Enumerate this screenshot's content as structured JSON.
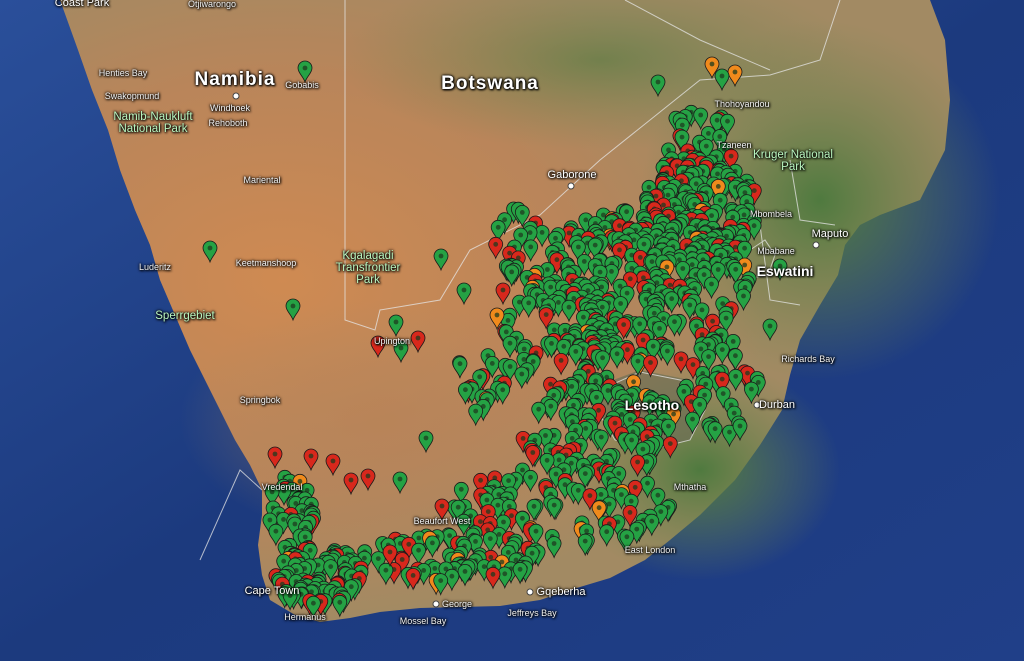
{
  "map": {
    "labels": {
      "namibia": "Namibia",
      "botswana": "Botswana",
      "lesotho": "Lesotho",
      "eswatini": "Eswatini",
      "coast_park": "Coast Park",
      "otjiwarongo": "Otjiwarongo",
      "henties_bay": "Henties Bay",
      "swakopmund": "Swakopmund",
      "windhoek": "Windhoek",
      "rehoboth": "Rehoboth",
      "gobabis": "Gobabis",
      "namib_naukluft": "Namib-Naukluft National Park",
      "mariental": "Mariental",
      "keetmanshoop": "Keetmanshoop",
      "luderitz": "Luderitz",
      "sperrgebiet": "Sperrgebiet",
      "kgalagadi": "Kgalagadi Transfrontier Park",
      "upington": "Upington",
      "springbok": "Springbok",
      "gaborone": "Gaborone",
      "thohoyandou": "Thohoyandou",
      "kruger": "Kruger National Park",
      "tzaneen": "Tzaneen",
      "mbombela": "Mbombela",
      "maputo": "Maputo",
      "mbabane": "Mbabane",
      "richards_bay": "Richards Bay",
      "durban": "Durban",
      "mthatha": "Mthatha",
      "east_london": "East London",
      "beaufort_west": "Beaufort West",
      "vredendal": "Vredendal",
      "cape_town": "Cape Town",
      "hermanus": "Hermanus",
      "george": "George",
      "mossel_bay": "Mossel Bay",
      "gqeberha": "Gqeberha",
      "jeffreys_bay": "Jeffreys Bay"
    },
    "marker_colors": {
      "green": "#25a244",
      "red": "#d8281c",
      "orange": "#f08a1c"
    },
    "land_colors": {
      "ocean": "#1f3f86",
      "desert": "#c48350",
      "savanna": "#9c9160",
      "green": "#5d7d45"
    },
    "marker_density": {
      "description_free": true,
      "green_markers_approx": 900,
      "red_markers_approx": 200,
      "orange_markers_approx": 25
    }
  }
}
